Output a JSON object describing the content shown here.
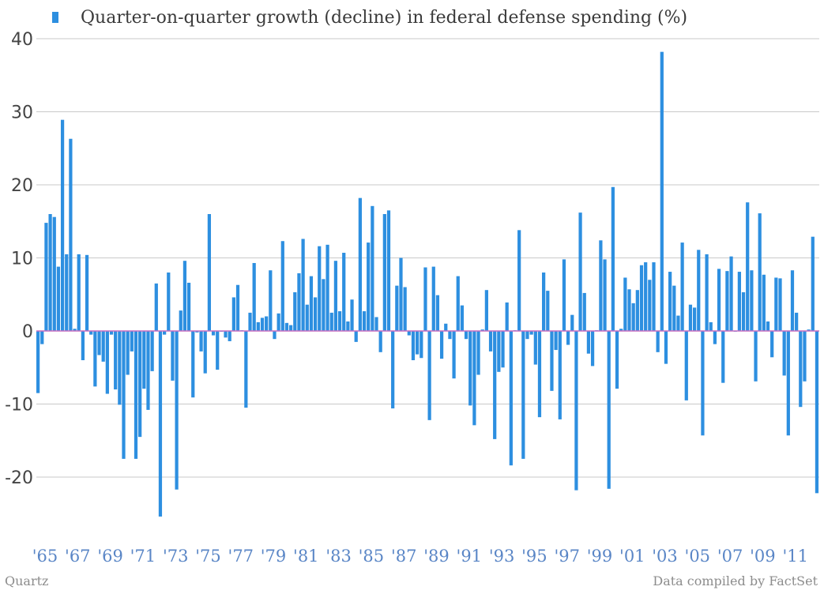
{
  "colors": {
    "bar": "#2d8fe0",
    "zero_line": "#c86fc0",
    "grid": "#c9c9c9"
  },
  "footer": {
    "source_left": "Quartz",
    "source_right": "Data compiled by FactSet"
  },
  "chart_data": {
    "type": "bar",
    "legend": "Quarter-on-quarter growth (decline) in federal defense spending (%)",
    "legend_position": "top-left",
    "grid": true,
    "ylim": [
      -28,
      40
    ],
    "yticks": [
      40,
      30,
      20,
      10,
      0,
      -10,
      -20
    ],
    "ytick_labels": [
      "40",
      "30",
      "20",
      "10",
      "0",
      "-10",
      "-20"
    ],
    "xtick_labels": [
      "'65",
      "'67",
      "'69",
      "'71",
      "'73",
      "'75",
      "'77",
      "'79",
      "'81",
      "'83",
      "'85",
      "'87",
      "'89",
      "'91",
      "'93",
      "'95",
      "'97",
      "'99",
      "'01",
      "'03",
      "'05",
      "'07",
      "'09",
      "'11"
    ],
    "xtick_years": [
      1965,
      1967,
      1969,
      1971,
      1973,
      1975,
      1977,
      1979,
      1981,
      1983,
      1985,
      1987,
      1989,
      1991,
      1993,
      1995,
      1997,
      1999,
      2001,
      2003,
      2005,
      2007,
      2009,
      2011
    ],
    "start_year": 1965,
    "series": [
      {
        "name": "Quarter-on-quarter growth (decline) in federal defense spending (%)",
        "values": [
          -8.5,
          -1.8,
          14.8,
          16.0,
          15.6,
          8.8,
          28.9,
          10.5,
          26.3,
          0.3,
          10.5,
          -4.0,
          10.4,
          -0.5,
          -7.6,
          -3.3,
          -4.2,
          -8.6,
          -0.5,
          -8.0,
          -10.1,
          -17.5,
          -6.0,
          -2.8,
          -17.5,
          -14.5,
          -7.9,
          -10.8,
          -5.5,
          6.5,
          -25.4,
          -0.5,
          8.0,
          -6.8,
          -21.7,
          2.8,
          9.6,
          6.6,
          -9.1,
          -0.2,
          -2.8,
          -5.8,
          16.0,
          -0.6,
          -5.3,
          -0.1,
          -0.9,
          -1.4,
          4.6,
          6.3,
          0.1,
          -10.5,
          2.5,
          9.3,
          1.2,
          1.8,
          2.0,
          8.3,
          -1.1,
          2.4,
          12.3,
          1.1,
          0.8,
          5.3,
          7.9,
          12.6,
          3.6,
          7.5,
          4.6,
          11.6,
          7.1,
          11.8,
          2.5,
          9.6,
          2.7,
          10.7,
          1.3,
          4.3,
          -1.5,
          18.2,
          2.7,
          12.1,
          17.1,
          1.9,
          -2.9,
          16.0,
          16.5,
          -10.6,
          6.2,
          10.0,
          6.0,
          -0.6,
          -4.0,
          -3.2,
          -3.7,
          8.7,
          -12.2,
          8.8,
          4.9,
          -3.8,
          1.0,
          -1.1,
          -6.5,
          7.5,
          3.5,
          -1.1,
          -10.2,
          -12.9,
          -6.0,
          0.2,
          5.6,
          -2.8,
          -14.8,
          -5.6,
          -5.0,
          3.9,
          -18.4,
          0.1,
          13.8,
          -17.5,
          -1.1,
          -0.5,
          -4.6,
          -11.8,
          8.0,
          5.5,
          -8.2,
          -2.6,
          -12.1,
          9.8,
          -1.9,
          2.2,
          -21.8,
          16.2,
          5.2,
          -3.1,
          -4.8,
          0.1,
          12.4,
          9.8,
          -21.6,
          19.7,
          -7.9,
          0.3,
          7.3,
          5.7,
          3.8,
          5.6,
          9.0,
          9.4,
          7.0,
          9.4,
          -2.9,
          38.2,
          -4.5,
          8.1,
          6.2,
          2.1,
          12.1,
          -9.5,
          3.6,
          3.2,
          11.1,
          -14.3,
          10.5,
          1.2,
          -1.8,
          8.5,
          -7.1,
          8.2,
          10.2,
          -0.1,
          8.1,
          5.3,
          17.6,
          8.3,
          -6.9,
          16.1,
          7.7,
          1.3,
          -3.6,
          7.3,
          7.2,
          -6.1,
          -14.3,
          8.3,
          2.5,
          -10.4,
          -6.9,
          0.2,
          12.9,
          -22.2
        ]
      }
    ]
  }
}
